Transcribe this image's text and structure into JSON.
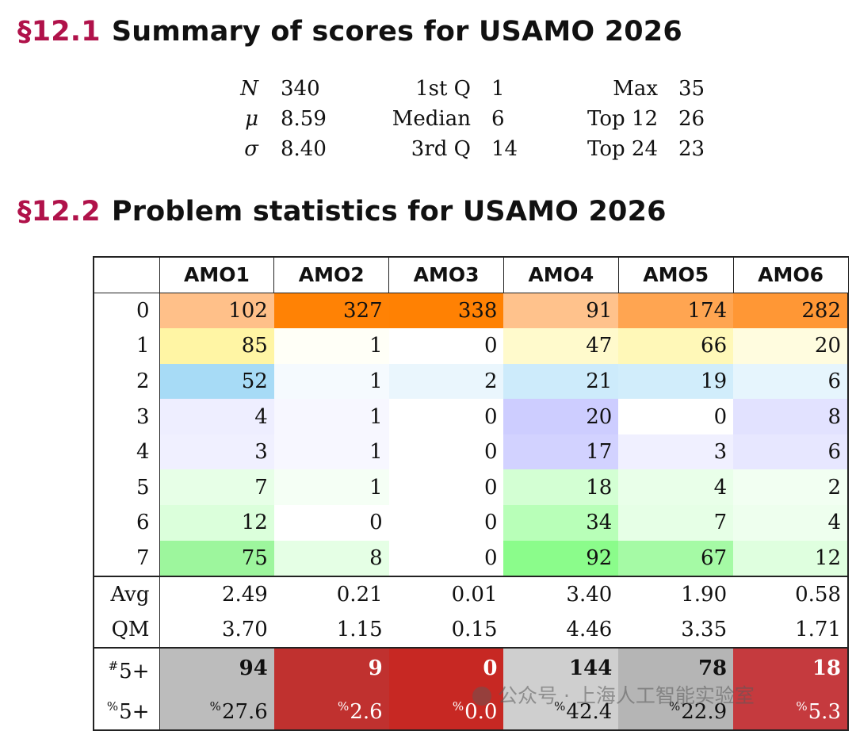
{
  "section1": {
    "number": "§12.1",
    "title": "Summary of scores for USAMO 2026"
  },
  "summary": {
    "col1": [
      {
        "label": "N",
        "value": "340"
      },
      {
        "label": "μ",
        "value": "8.59"
      },
      {
        "label": "σ",
        "value": "8.40"
      }
    ],
    "col2": [
      {
        "label": "1st Q",
        "value": "1"
      },
      {
        "label": "Median",
        "value": "6"
      },
      {
        "label": "3rd Q",
        "value": "14"
      }
    ],
    "col3": [
      {
        "label": "Max",
        "value": "35"
      },
      {
        "label": "Top 12",
        "value": "26"
      },
      {
        "label": "Top 24",
        "value": "23"
      }
    ]
  },
  "section2": {
    "number": "§12.2",
    "title": "Problem statistics for USAMO 2026"
  },
  "table": {
    "headers": [
      "AMO1",
      "AMO2",
      "AMO3",
      "AMO4",
      "AMO5",
      "AMO6"
    ],
    "score_rows": [
      {
        "label": "0",
        "values": [
          "102",
          "327",
          "338",
          "91",
          "174",
          "282"
        ]
      },
      {
        "label": "1",
        "values": [
          "85",
          "1",
          "0",
          "47",
          "66",
          "20"
        ]
      },
      {
        "label": "2",
        "values": [
          "52",
          "1",
          "2",
          "21",
          "19",
          "6"
        ]
      },
      {
        "label": "3",
        "values": [
          "4",
          "1",
          "0",
          "20",
          "0",
          "8"
        ]
      },
      {
        "label": "4",
        "values": [
          "3",
          "1",
          "0",
          "17",
          "3",
          "6"
        ]
      },
      {
        "label": "5",
        "values": [
          "7",
          "1",
          "0",
          "18",
          "4",
          "2"
        ]
      },
      {
        "label": "6",
        "values": [
          "12",
          "0",
          "0",
          "34",
          "7",
          "4"
        ]
      },
      {
        "label": "7",
        "values": [
          "75",
          "8",
          "0",
          "92",
          "67",
          "12"
        ]
      }
    ],
    "avg": {
      "label": "Avg",
      "values": [
        "2.49",
        "0.21",
        "0.01",
        "3.40",
        "1.90",
        "0.58"
      ]
    },
    "qm": {
      "label": "QM",
      "values": [
        "3.70",
        "1.15",
        "0.15",
        "4.46",
        "3.35",
        "1.71"
      ]
    },
    "count5": {
      "label_sup": "#",
      "label": "5+",
      "values": [
        "94",
        "9",
        "0",
        "144",
        "78",
        "18"
      ]
    },
    "pct5": {
      "label_sup": "%",
      "label": "5+",
      "value_sup": "%",
      "values": [
        "27.6",
        "2.6",
        "0.0",
        "42.4",
        "22.9",
        "5.3"
      ]
    }
  },
  "colors": {
    "accent": "#b0124a",
    "score_rows": [
      [
        "#ffc089",
        "#ff8205",
        "#ff8103",
        "#ffc28c",
        "#ffa551",
        "#ff9735"
      ],
      [
        "#fff5a4",
        "#fffff7",
        "#ffffff",
        "#fffacc",
        "#fff8b8",
        "#fffcdf"
      ],
      [
        "#a7dbf6",
        "#f5fafe",
        "#eaf6fd",
        "#cdebfb",
        "#d1edfb",
        "#e6f5fd"
      ],
      [
        "#eeeeff",
        "#f7f7ff",
        "#ffffff",
        "#cdcdff",
        "#ffffff",
        "#e2e2ff"
      ],
      [
        "#f0f0ff",
        "#f7f7ff",
        "#ffffff",
        "#d2d2ff",
        "#f0f0ff",
        "#e7e7ff"
      ],
      [
        "#e7ffe7",
        "#f5fff5",
        "#ffffff",
        "#d3ffd3",
        "#e9ffe9",
        "#f2fff2"
      ],
      [
        "#dbffdb",
        "#ffffff",
        "#ffffff",
        "#b8ffb8",
        "#e6ffe6",
        "#eeffee"
      ],
      [
        "#9df69d",
        "#e5ffe5",
        "#ffffff",
        "#8bfc8b",
        "#a5faa5",
        "#dfffdf"
      ]
    ],
    "bottom": [
      "#bcbcbc",
      "#c0312f",
      "#c72823",
      "#cfcfcf",
      "#b5b5b5",
      "#c53a3e"
    ],
    "bottom_text_white": [
      false,
      true,
      true,
      false,
      false,
      true
    ]
  }
}
